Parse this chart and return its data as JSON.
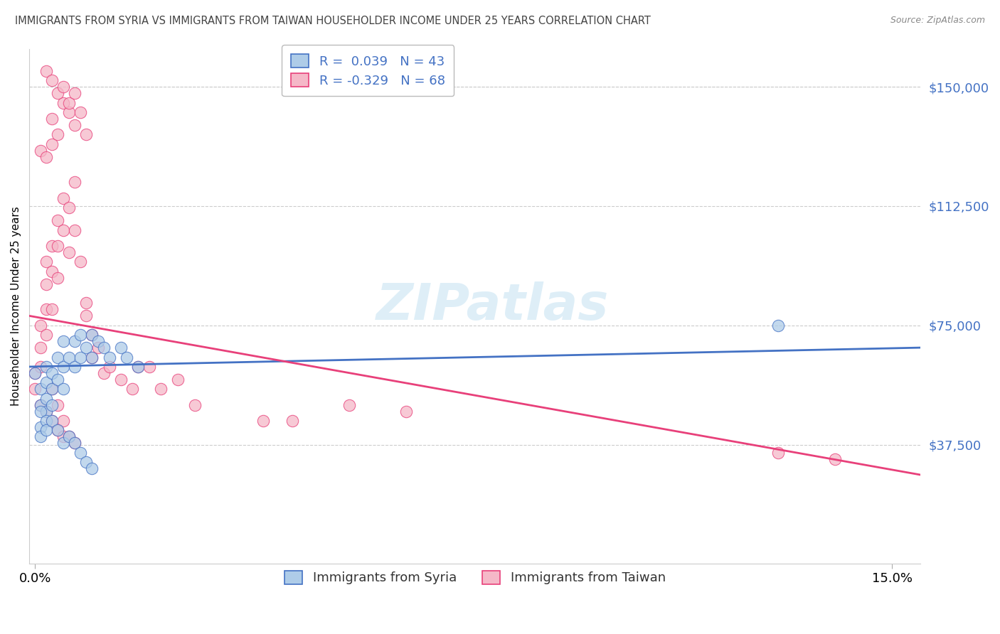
{
  "title": "IMMIGRANTS FROM SYRIA VS IMMIGRANTS FROM TAIWAN HOUSEHOLDER INCOME UNDER 25 YEARS CORRELATION CHART",
  "source": "Source: ZipAtlas.com",
  "ylabel": "Householder Income Under 25 years",
  "ytick_labels": [
    "$37,500",
    "$75,000",
    "$112,500",
    "$150,000"
  ],
  "ytick_values": [
    37500,
    75000,
    112500,
    150000
  ],
  "ymin": 0,
  "ymax": 162000,
  "xmin": -0.001,
  "xmax": 0.155,
  "R_syria": 0.039,
  "N_syria": 43,
  "R_taiwan": -0.329,
  "N_taiwan": 68,
  "color_syria": "#aecce8",
  "color_taiwan": "#f5b8c8",
  "line_color_syria": "#4472c4",
  "line_color_taiwan": "#e8407a",
  "legend_label_syria": "Immigrants from Syria",
  "legend_label_taiwan": "Immigrants from Taiwan",
  "syria_x": [
    0.0,
    0.001,
    0.001,
    0.002,
    0.002,
    0.002,
    0.002,
    0.003,
    0.003,
    0.003,
    0.004,
    0.004,
    0.005,
    0.005,
    0.005,
    0.006,
    0.007,
    0.007,
    0.008,
    0.008,
    0.009,
    0.01,
    0.01,
    0.011,
    0.012,
    0.013,
    0.015,
    0.016,
    0.018,
    0.001,
    0.001,
    0.001,
    0.002,
    0.002,
    0.003,
    0.004,
    0.005,
    0.006,
    0.007,
    0.008,
    0.009,
    0.01,
    0.13
  ],
  "syria_y": [
    60000,
    55000,
    50000,
    62000,
    57000,
    52000,
    48000,
    60000,
    55000,
    50000,
    65000,
    58000,
    70000,
    62000,
    55000,
    65000,
    70000,
    62000,
    72000,
    65000,
    68000,
    72000,
    65000,
    70000,
    68000,
    65000,
    68000,
    65000,
    62000,
    48000,
    43000,
    40000,
    45000,
    42000,
    45000,
    42000,
    38000,
    40000,
    38000,
    35000,
    32000,
    30000,
    75000
  ],
  "taiwan_x": [
    0.0,
    0.0,
    0.001,
    0.001,
    0.001,
    0.002,
    0.002,
    0.002,
    0.002,
    0.003,
    0.003,
    0.003,
    0.004,
    0.004,
    0.004,
    0.005,
    0.005,
    0.006,
    0.006,
    0.007,
    0.007,
    0.008,
    0.009,
    0.009,
    0.01,
    0.01,
    0.011,
    0.012,
    0.013,
    0.015,
    0.017,
    0.018,
    0.02,
    0.022,
    0.025,
    0.028,
    0.04,
    0.045,
    0.055,
    0.065,
    0.13,
    0.14,
    0.001,
    0.002,
    0.003,
    0.003,
    0.004,
    0.005,
    0.006,
    0.007,
    0.002,
    0.003,
    0.004,
    0.005,
    0.006,
    0.007,
    0.008,
    0.009,
    0.001,
    0.002,
    0.003,
    0.004,
    0.005,
    0.003,
    0.004,
    0.005,
    0.006,
    0.007
  ],
  "taiwan_y": [
    60000,
    55000,
    75000,
    68000,
    62000,
    80000,
    88000,
    95000,
    72000,
    100000,
    92000,
    80000,
    108000,
    100000,
    90000,
    115000,
    105000,
    112000,
    98000,
    120000,
    105000,
    95000,
    82000,
    78000,
    72000,
    65000,
    68000,
    60000,
    62000,
    58000,
    55000,
    62000,
    62000,
    55000,
    58000,
    50000,
    45000,
    45000,
    50000,
    48000,
    35000,
    33000,
    130000,
    128000,
    132000,
    140000,
    135000,
    145000,
    142000,
    138000,
    155000,
    152000,
    148000,
    150000,
    145000,
    148000,
    142000,
    135000,
    50000,
    48000,
    45000,
    42000,
    40000,
    55000,
    50000,
    45000,
    40000,
    38000
  ]
}
